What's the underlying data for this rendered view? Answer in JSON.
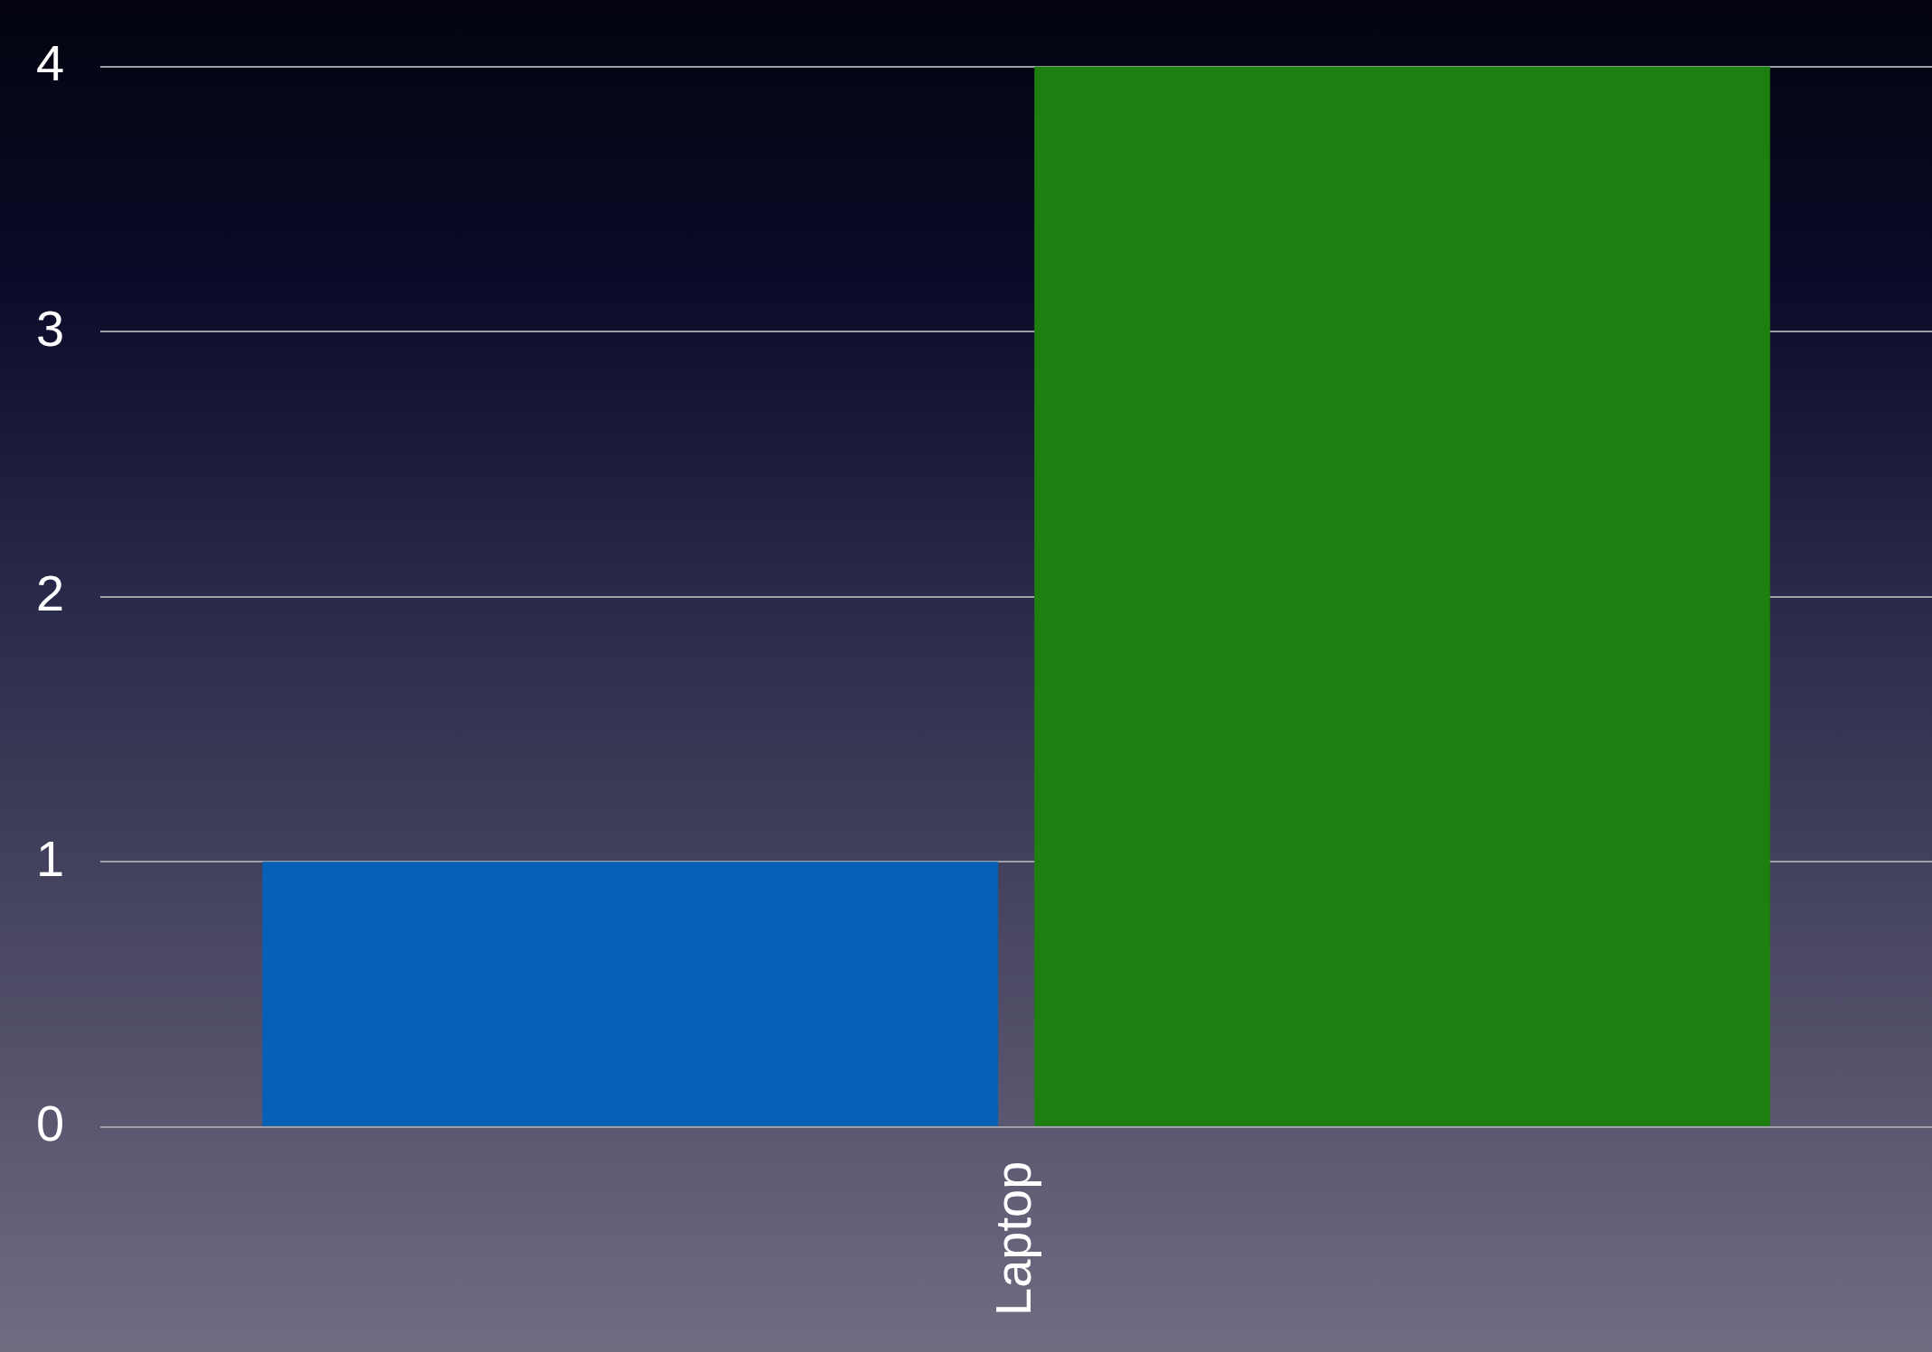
{
  "chart_data": {
    "type": "bar",
    "categories": [
      "Laptop"
    ],
    "series": [
      {
        "color": "#0660b5",
        "values": [
          1
        ]
      },
      {
        "color": "#1c7f10",
        "values": [
          4
        ]
      }
    ],
    "ylim": [
      0,
      4
    ],
    "yticks": [
      0,
      1,
      2,
      3,
      4
    ],
    "grid": "y",
    "legend": false
  }
}
